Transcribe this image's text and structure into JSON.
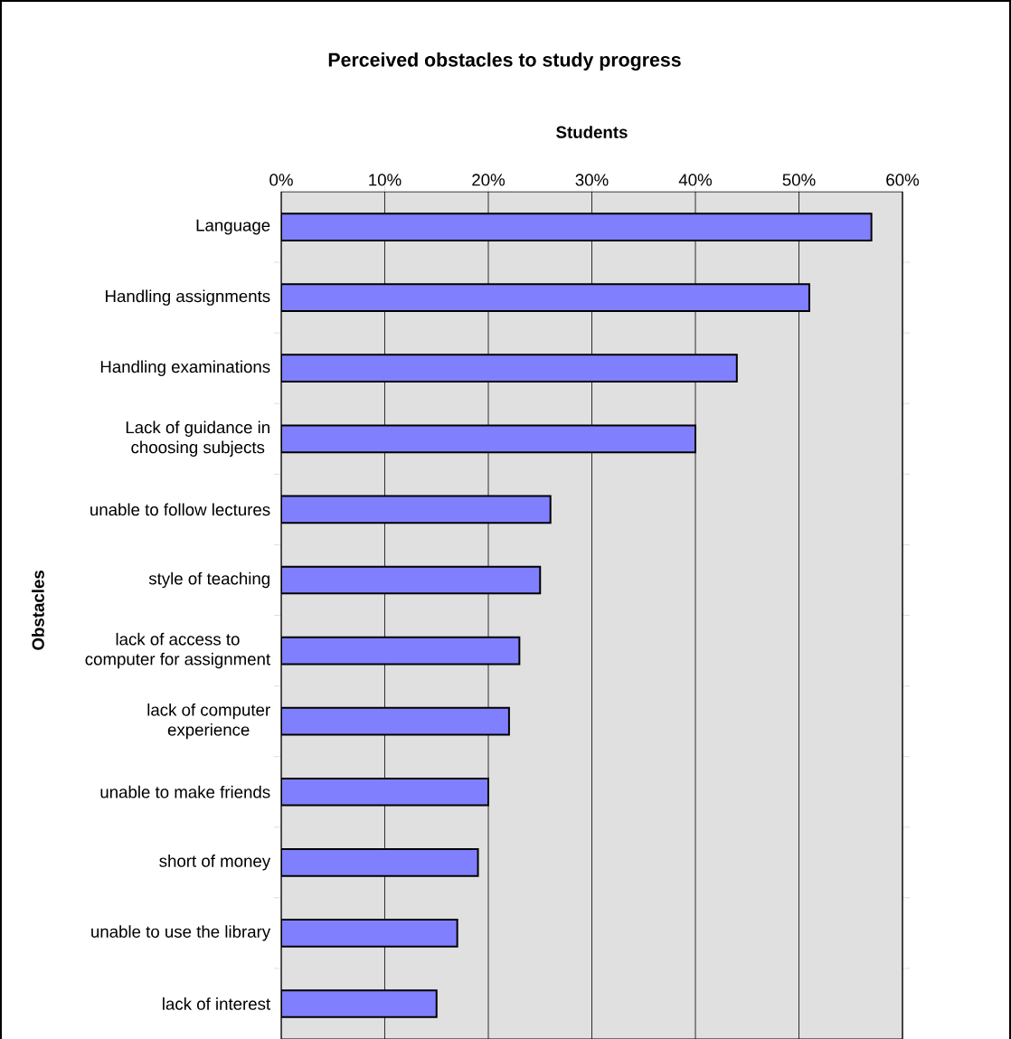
{
  "chart_data": {
    "type": "bar",
    "orientation": "horizontal",
    "title": "Perceived obstacles to study progress",
    "xlabel": "Students",
    "ylabel": "Obstacles",
    "categories": [
      "Language",
      "Handling assignments",
      "Handling examinations",
      "Lack of guidance in choosing subjects",
      "unable to follow lectures",
      "style of teaching",
      "lack of access to computer for assignment",
      "lack of computer experience",
      "unable to make friends",
      "short of money",
      "unable to use the library",
      "lack of interest"
    ],
    "values": [
      57,
      51,
      44,
      40,
      26,
      25,
      23,
      22,
      20,
      19,
      17,
      15
    ],
    "color": "#8080ff",
    "xlim": [
      0,
      60
    ],
    "xticks": [
      {
        "value": 0,
        "label": "0%"
      },
      {
        "value": 10,
        "label": "10%"
      },
      {
        "value": 20,
        "label": "20%"
      },
      {
        "value": 30,
        "label": "30%"
      },
      {
        "value": 40,
        "label": "40%"
      },
      {
        "value": 50,
        "label": "50%"
      },
      {
        "value": 60,
        "label": "60%"
      }
    ],
    "grid": "x"
  }
}
